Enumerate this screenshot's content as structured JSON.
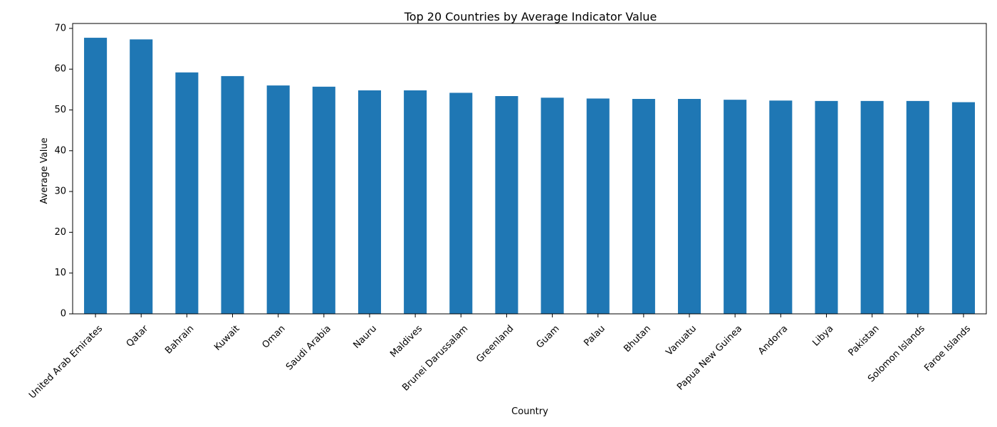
{
  "chart_data": {
    "type": "bar",
    "title": "Top 20 Countries by Average Indicator Value",
    "xlabel": "Country",
    "ylabel": "Average Value",
    "ylim": [
      0,
      71.2
    ],
    "yticks": [
      0,
      10,
      20,
      30,
      40,
      50,
      60,
      70
    ],
    "bar_color": "#1f77b4",
    "grid": false,
    "legend": "none",
    "categories": [
      "United Arab Emirates",
      "Qatar",
      "Bahrain",
      "Kuwait",
      "Oman",
      "Saudi Arabia",
      "Nauru",
      "Maldives",
      "Brunei Darussalam",
      "Greenland",
      "Guam",
      "Palau",
      "Bhutan",
      "Vanuatu",
      "Papua New Guinea",
      "Andorra",
      "Libya",
      "Pakistan",
      "Solomon Islands",
      "Faroe Islands"
    ],
    "values": [
      67.7,
      67.3,
      59.2,
      58.3,
      56.0,
      55.7,
      54.8,
      54.8,
      54.2,
      53.4,
      53.0,
      52.8,
      52.7,
      52.7,
      52.5,
      52.3,
      52.2,
      52.2,
      52.2,
      51.9
    ]
  }
}
